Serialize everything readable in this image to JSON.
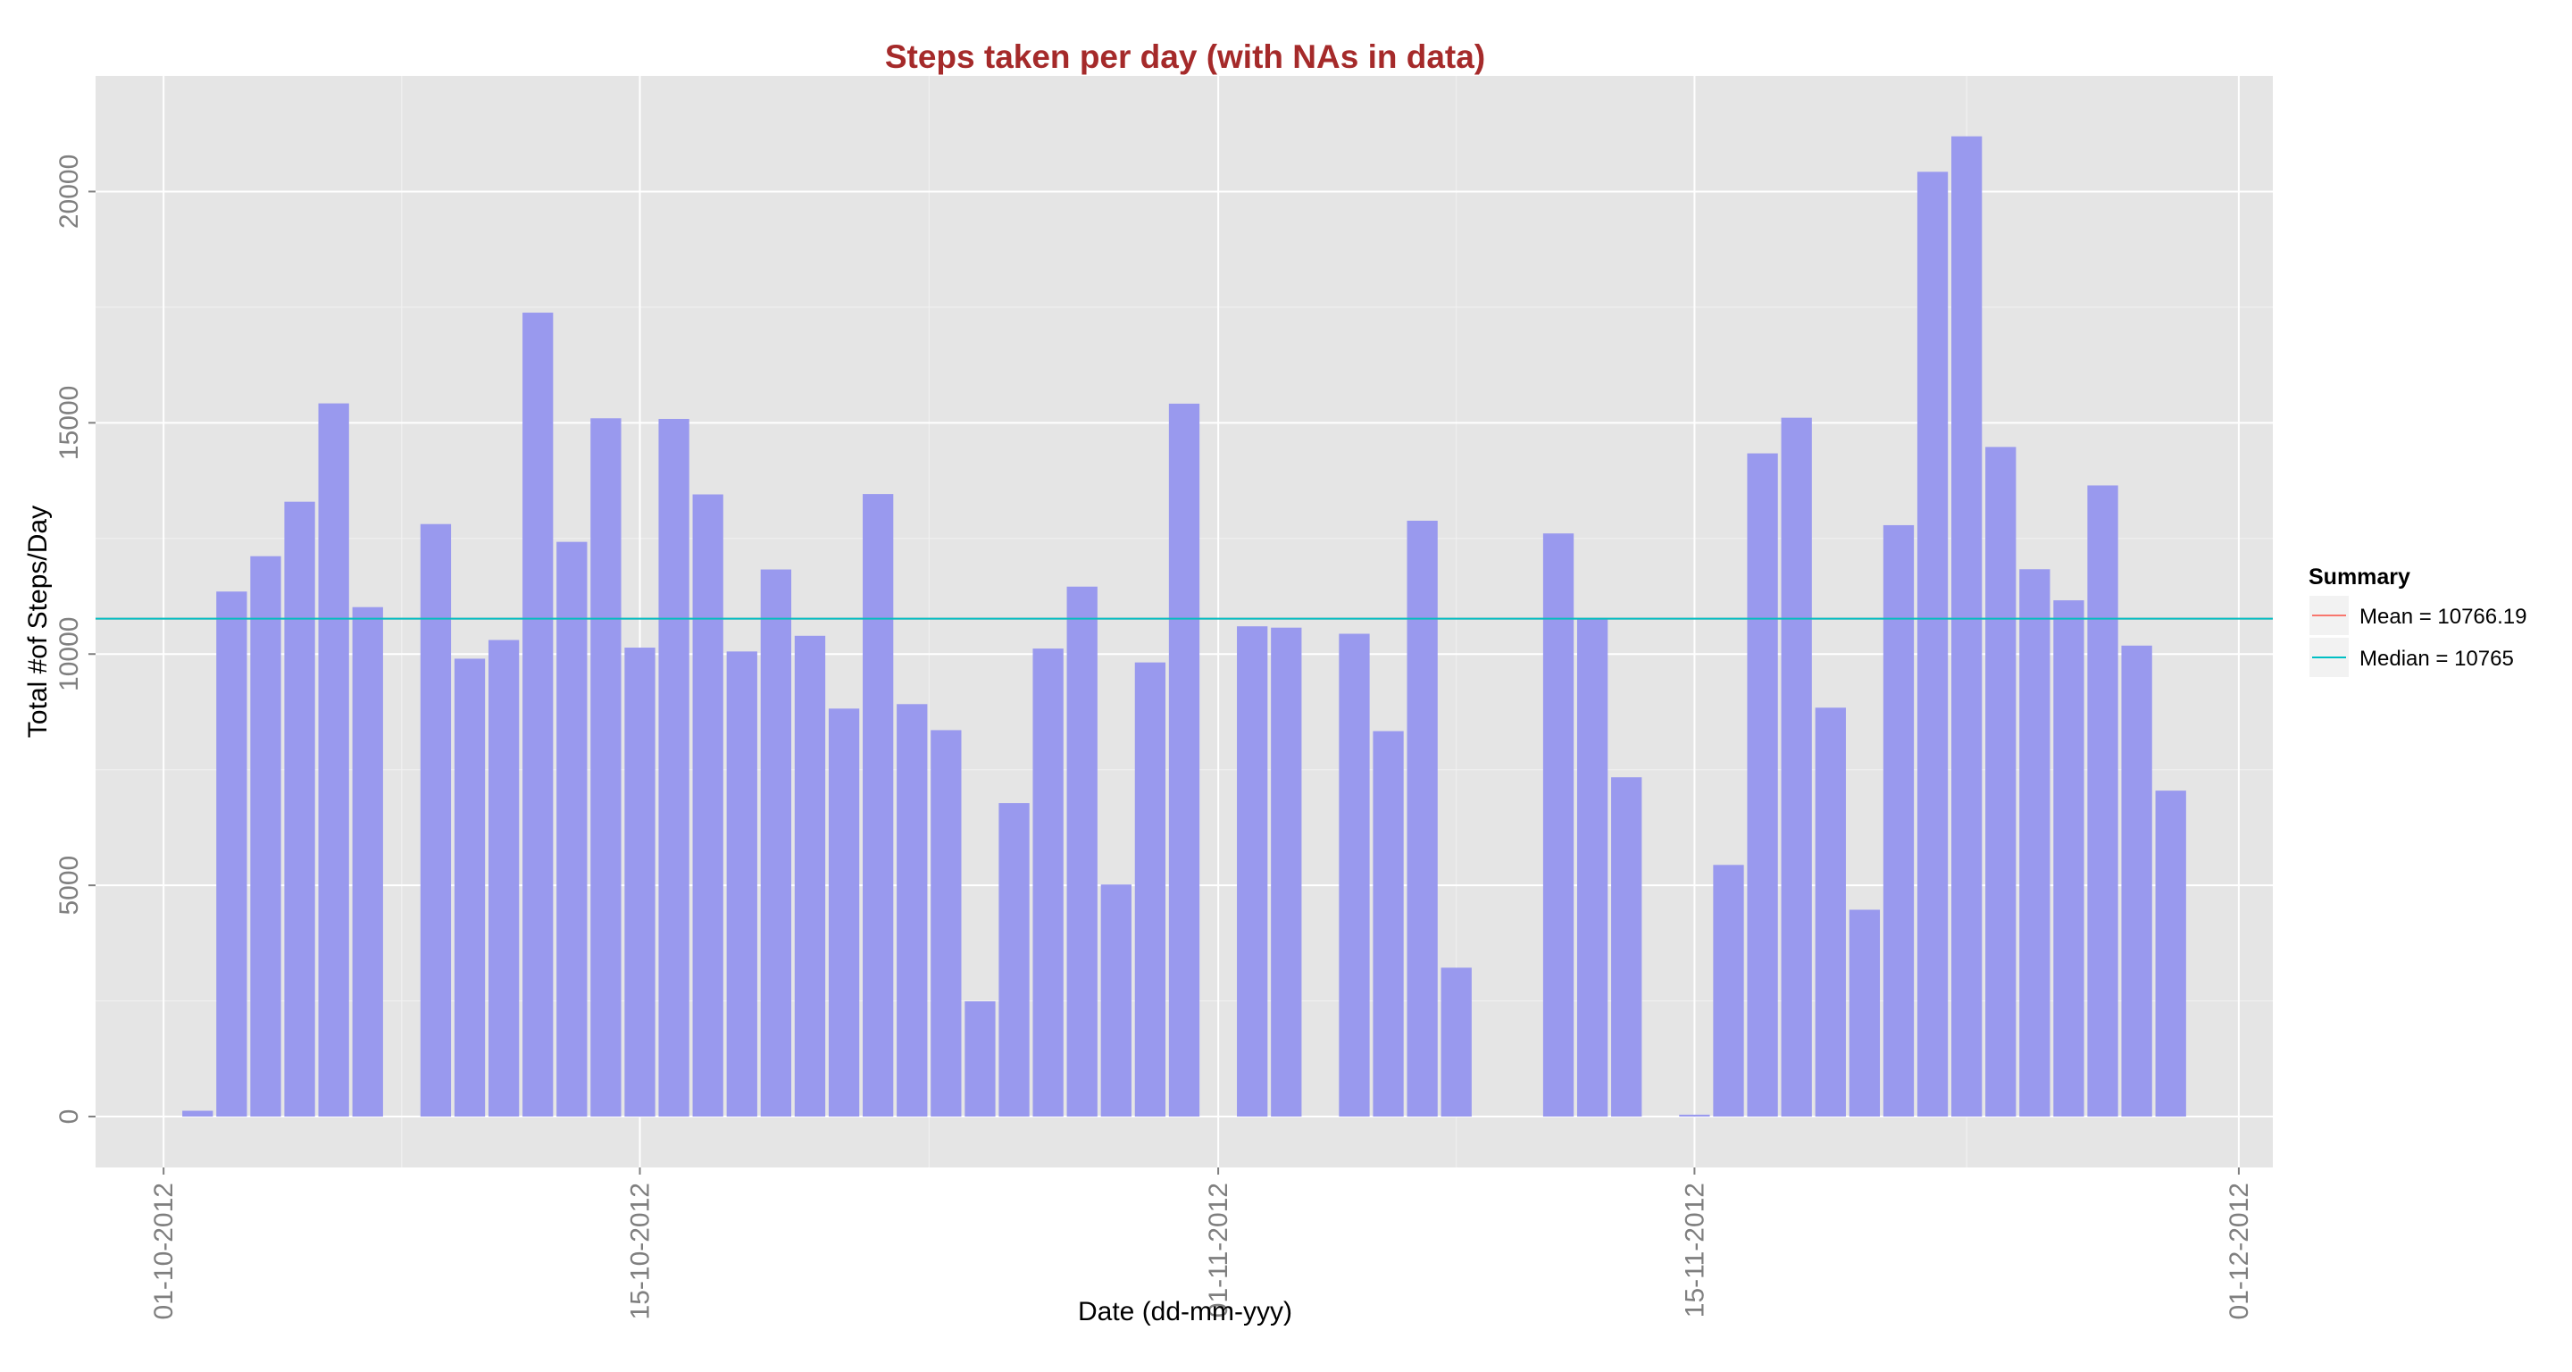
{
  "chart_data": {
    "type": "bar",
    "title": "Steps taken per day (with NAs in data)",
    "xlabel": "Date (dd-mm-yyy)",
    "ylabel": "Total #of Steps/Day",
    "x_ticks": [
      "01-10-2012",
      "15-10-2012",
      "01-11-2012",
      "15-11-2012",
      "01-12-2012"
    ],
    "y_ticks": [
      0,
      5000,
      10000,
      15000,
      20000
    ],
    "ylim": [
      -1100,
      22500
    ],
    "xlim": [
      "2012-09-29",
      "2012-12-02"
    ],
    "grid": true,
    "bar_color": "#9999ee",
    "panel_background": "#e5e5e5",
    "dates": [
      "2012-10-02",
      "2012-10-03",
      "2012-10-04",
      "2012-10-05",
      "2012-10-06",
      "2012-10-07",
      "2012-10-09",
      "2012-10-10",
      "2012-10-11",
      "2012-10-12",
      "2012-10-13",
      "2012-10-14",
      "2012-10-15",
      "2012-10-16",
      "2012-10-17",
      "2012-10-18",
      "2012-10-19",
      "2012-10-20",
      "2012-10-21",
      "2012-10-22",
      "2012-10-23",
      "2012-10-24",
      "2012-10-25",
      "2012-10-26",
      "2012-10-27",
      "2012-10-28",
      "2012-10-29",
      "2012-10-30",
      "2012-10-31",
      "2012-11-02",
      "2012-11-03",
      "2012-11-05",
      "2012-11-06",
      "2012-11-07",
      "2012-11-08",
      "2012-11-11",
      "2012-11-12",
      "2012-11-13",
      "2012-11-15",
      "2012-11-16",
      "2012-11-17",
      "2012-11-18",
      "2012-11-19",
      "2012-11-20",
      "2012-11-21",
      "2012-11-22",
      "2012-11-23",
      "2012-11-24",
      "2012-11-25",
      "2012-11-26",
      "2012-11-27",
      "2012-11-28",
      "2012-11-29"
    ],
    "values": [
      126,
      11352,
      12116,
      13294,
      15420,
      11015,
      12811,
      9900,
      10304,
      17382,
      12426,
      15098,
      10139,
      15084,
      13452,
      10056,
      11829,
      10395,
      8821,
      13460,
      8918,
      8355,
      2492,
      6778,
      10119,
      11458,
      5018,
      9819,
      15414,
      10600,
      10571,
      10439,
      8334,
      12883,
      3219,
      12608,
      10765,
      7336,
      41,
      5441,
      14339,
      15110,
      8841,
      4472,
      12787,
      20427,
      21194,
      14478,
      11834,
      11162,
      13646,
      10183,
      7047
    ],
    "series": [
      {
        "name": "Mean =  10766.19",
        "value": 10766.19,
        "color": "#f8766d"
      },
      {
        "name": "Median =  10765",
        "value": 10765,
        "color": "#00bfc4"
      }
    ],
    "legend": {
      "title": "Summary",
      "placement": "right"
    }
  }
}
